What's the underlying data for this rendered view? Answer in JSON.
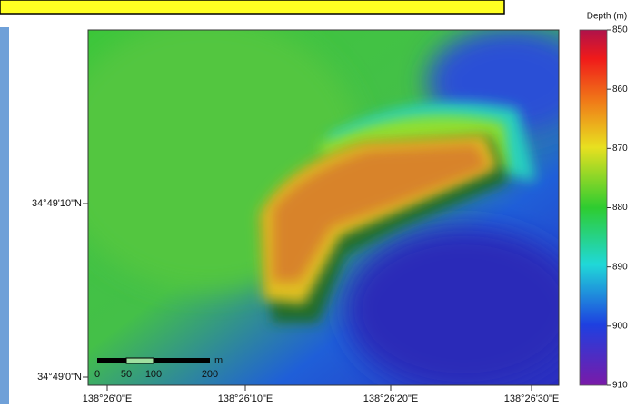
{
  "map": {
    "legend": {
      "title": "Depth (m)",
      "ticks": [
        850,
        860,
        870,
        880,
        890,
        900,
        910
      ]
    },
    "x_labels": [
      "138°26'0\"E",
      "138°26'10\"E",
      "138°26'20\"E",
      "138°26'30\"E"
    ],
    "y_labels": [
      "34°49'10\"N",
      "34°49'0\"N"
    ],
    "scale_bar": {
      "unit": "m",
      "labels": [
        "0",
        "50",
        "100",
        "200"
      ]
    }
  }
}
